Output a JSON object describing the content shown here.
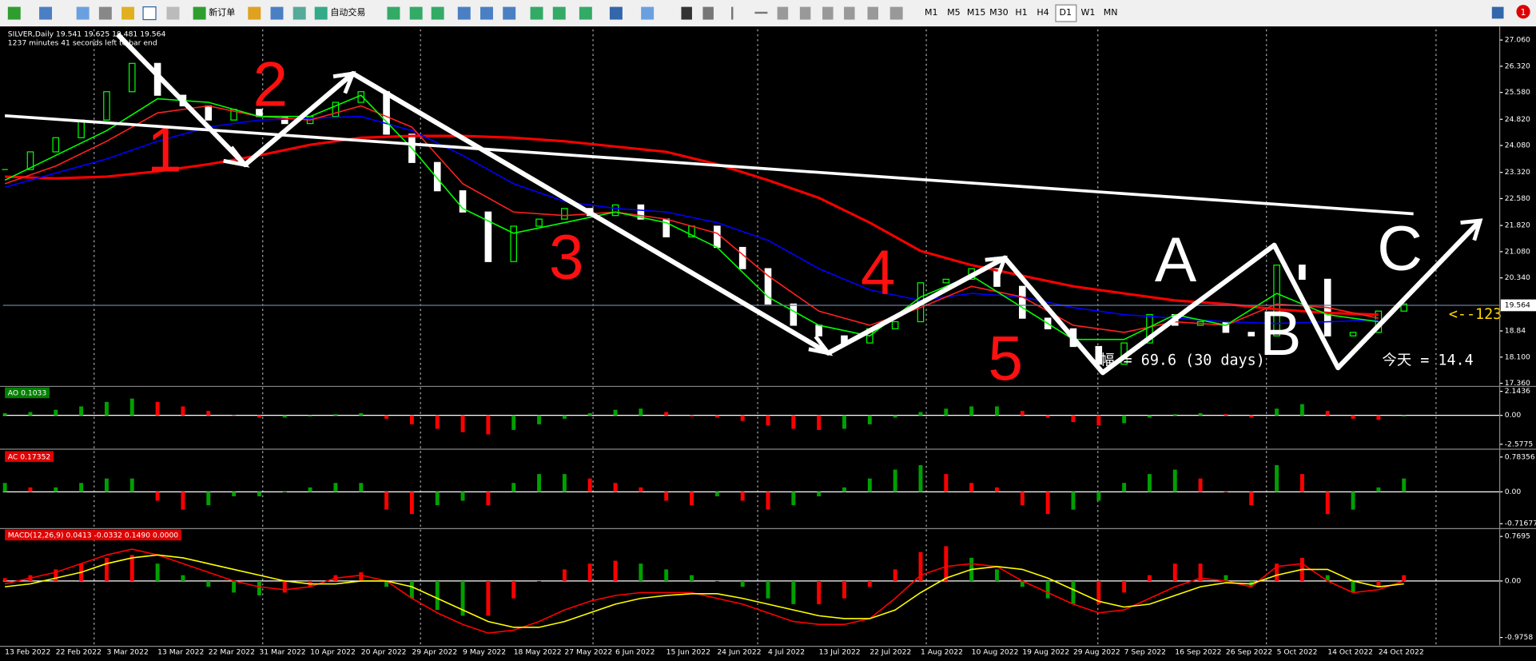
{
  "toolbar": {
    "new_order": "新订单",
    "auto_trading": "自动交易",
    "timeframes": [
      "M1",
      "M5",
      "M15",
      "M30",
      "H1",
      "H4",
      "D1",
      "W1",
      "MN"
    ],
    "active_timeframe": "D1",
    "notifications": 1
  },
  "chart_data": [
    {
      "type": "candlestick",
      "title": "SILVER,Daily  19.541 19.625 19.481 19.564",
      "subtitle": "1237 minutes 41 seconds left to bar end",
      "categories": [
        "13 Feb 2022",
        "22 Feb 2022",
        "3 Mar 2022",
        "13 Mar 2022",
        "22 Mar 2022",
        "31 Mar 2022",
        "10 Apr 2022",
        "20 Apr 2022",
        "29 Apr 2022",
        "9 May 2022",
        "18 May 2022",
        "27 May 2022",
        "6 Jun 2022",
        "15 Jun 2022",
        "24 Jun 2022",
        "4 Jul 2022",
        "13 Jul 2022",
        "22 Jul 2022",
        "1 Aug 2022",
        "10 Aug 2022",
        "19 Aug 2022",
        "29 Aug 2022",
        "7 Sep 2022",
        "16 Sep 2022",
        "26 Sep 2022",
        "5 Oct 2022",
        "14 Oct 2022",
        "24 Oct 2022"
      ],
      "closes": [
        23.4,
        23.9,
        24.3,
        24.8,
        25.6,
        26.4,
        25.5,
        25.2,
        24.8,
        25.1,
        24.9,
        24.7,
        24.9,
        25.3,
        25.6,
        24.4,
        23.6,
        22.8,
        22.2,
        20.8,
        21.8,
        22.0,
        22.3,
        22.1,
        22.4,
        22.0,
        21.5,
        21.8,
        21.2,
        20.6,
        19.6,
        19.0,
        18.7,
        18.5,
        18.9,
        19.1,
        20.2,
        20.3,
        20.6,
        20.1,
        19.2,
        18.9,
        18.4,
        17.9,
        18.5,
        19.3,
        19.0,
        19.1,
        18.8,
        18.7,
        20.7,
        20.3,
        18.7,
        18.8,
        19.4,
        19.6
      ],
      "up_color": "#00ff00",
      "down_color": "#ffffff",
      "series": [
        {
          "color": "#ff0000",
          "values": [
            23.2,
            23.15,
            23.2,
            23.35,
            23.55,
            23.8,
            24.1,
            24.3,
            24.35,
            24.35,
            24.3,
            24.2,
            24.05,
            23.9,
            23.55,
            23.1,
            22.6,
            21.9,
            21.1,
            20.7,
            20.4,
            20.1,
            19.9,
            19.7,
            19.6,
            19.45,
            19.35,
            19.3
          ]
        },
        {
          "color": "#0000ff",
          "values": [
            22.9,
            23.3,
            23.7,
            24.2,
            24.6,
            24.8,
            24.85,
            24.9,
            24.5,
            23.8,
            23.0,
            22.5,
            22.3,
            22.2,
            21.9,
            21.4,
            20.6,
            20.0,
            19.7,
            19.9,
            19.8,
            19.5,
            19.3,
            19.2,
            19.1,
            19.05,
            19.1,
            19.15
          ]
        },
        {
          "color": "#ff2020",
          "values": [
            23.0,
            23.5,
            24.2,
            25.0,
            25.2,
            24.9,
            24.8,
            25.2,
            24.6,
            23.0,
            22.2,
            22.1,
            22.2,
            22.0,
            21.6,
            20.4,
            19.4,
            19.0,
            19.5,
            20.1,
            19.8,
            19.0,
            18.8,
            19.1,
            19.0,
            19.6,
            19.5,
            19.2
          ]
        },
        {
          "color": "#00ff00",
          "values": [
            23.1,
            23.8,
            24.5,
            25.4,
            25.3,
            24.9,
            24.9,
            25.5,
            24.0,
            22.3,
            21.6,
            21.9,
            22.2,
            21.9,
            21.2,
            19.8,
            19.0,
            18.7,
            19.8,
            20.4,
            19.5,
            18.6,
            18.6,
            19.3,
            19.0,
            19.9,
            19.3,
            19.1
          ]
        }
      ],
      "ylim": [
        17.3,
        27.36
      ],
      "yticks": [
        {
          "value": 27.06,
          "label": "27.060"
        },
        {
          "value": 26.32,
          "label": "26.320"
        },
        {
          "value": 25.58,
          "label": "25.580"
        },
        {
          "value": 24.82,
          "label": "24.820"
        },
        {
          "value": 24.08,
          "label": "24.080"
        },
        {
          "value": 23.32,
          "label": "23.320"
        },
        {
          "value": 22.58,
          "label": "22.580"
        },
        {
          "value": 21.82,
          "label": "21.820"
        },
        {
          "value": 21.08,
          "label": "21.080"
        },
        {
          "value": 20.34,
          "label": "20.340"
        },
        18.84,
        {
          "value": 18.1,
          "label": "18.100"
        },
        {
          "value": 17.36,
          "label": "17.360"
        }
      ],
      "current_price": 19.564,
      "annotations": {
        "waves": [
          "1",
          "2",
          "3",
          "4",
          "5",
          "A",
          "B",
          "C"
        ],
        "amplitude": "幅 = 69.6  (30 days)",
        "today": "今天 = 14.4",
        "marker": "<--123"
      }
    },
    {
      "type": "bar",
      "title": "AO 0.1033",
      "title_bg": "#008000",
      "up_color": "#00a000",
      "down_color": "#ff0000",
      "values": [
        0.2,
        0.3,
        0.5,
        0.8,
        1.2,
        1.5,
        1.2,
        0.8,
        0.4,
        0.0,
        -0.2,
        -0.2,
        -0.1,
        0.1,
        0.2,
        -0.3,
        -0.8,
        -1.2,
        -1.5,
        -1.7,
        -1.3,
        -0.8,
        -0.3,
        0.2,
        0.5,
        0.6,
        0.3,
        -0.1,
        -0.2,
        -0.5,
        -0.9,
        -1.2,
        -1.3,
        -1.2,
        -0.8,
        -0.2,
        0.3,
        0.6,
        0.8,
        0.8,
        0.4,
        -0.2,
        -0.6,
        -0.9,
        -0.7,
        -0.2,
        0.1,
        0.2,
        0.1,
        -0.2,
        0.6,
        1.0,
        0.4,
        -0.3,
        -0.4,
        -0.1
      ],
      "ylim": [
        -2.93,
        2.41
      ],
      "yticks": [
        2.1436,
        {
          "value": 0,
          "label": "0.00"
        },
        -2.5775
      ]
    },
    {
      "type": "bar",
      "title": "AC 0.17352",
      "title_bg": "#e00000",
      "up_color": "#00a000",
      "down_color": "#ff0000",
      "values": [
        0.2,
        0.1,
        0.1,
        0.2,
        0.3,
        0.3,
        -0.2,
        -0.4,
        -0.3,
        -0.1,
        -0.1,
        0.0,
        0.1,
        0.2,
        0.2,
        -0.4,
        -0.5,
        -0.3,
        -0.2,
        -0.3,
        0.2,
        0.4,
        0.4,
        0.3,
        0.2,
        0.1,
        -0.2,
        -0.3,
        -0.1,
        -0.2,
        -0.4,
        -0.3,
        -0.1,
        0.1,
        0.3,
        0.5,
        0.6,
        0.4,
        0.2,
        0.1,
        -0.3,
        -0.5,
        -0.4,
        -0.2,
        0.2,
        0.4,
        0.5,
        0.3,
        0.0,
        -0.3,
        0.6,
        0.4,
        -0.5,
        -0.4,
        0.1,
        0.3
      ],
      "ylim": [
        -0.805,
        0.894
      ],
      "yticks": [
        0.78356,
        {
          "value": 0,
          "label": "0.00"
        },
        -0.71677
      ]
    },
    {
      "type": "macd",
      "title": "MACD(12,26,9) 0.0413 -0.0332 0.1490 0.0000",
      "title_bg": "#e00000",
      "up_color": "#ff0000",
      "down_color": "#00a000",
      "values": [
        0.05,
        0.1,
        0.2,
        0.3,
        0.4,
        0.45,
        0.3,
        0.1,
        -0.1,
        -0.2,
        -0.25,
        -0.2,
        -0.1,
        0.1,
        0.15,
        -0.1,
        -0.3,
        -0.5,
        -0.6,
        -0.6,
        -0.3,
        0.0,
        0.2,
        0.3,
        0.35,
        0.3,
        0.2,
        0.1,
        0.0,
        -0.1,
        -0.3,
        -0.4,
        -0.4,
        -0.3,
        -0.1,
        0.2,
        0.5,
        0.6,
        0.4,
        0.2,
        -0.1,
        -0.3,
        -0.4,
        -0.4,
        -0.2,
        0.1,
        0.3,
        0.3,
        0.1,
        -0.1,
        0.3,
        0.4,
        0.1,
        -0.2,
        -0.1,
        0.1
      ],
      "series": [
        {
          "color": "#ff0000",
          "values": [
            -0.05,
            0.05,
            0.15,
            0.3,
            0.45,
            0.55,
            0.45,
            0.3,
            0.15,
            0.0,
            -0.1,
            -0.15,
            -0.1,
            0.05,
            0.1,
            0.0,
            -0.3,
            -0.55,
            -0.75,
            -0.9,
            -0.85,
            -0.7,
            -0.5,
            -0.35,
            -0.25,
            -0.2,
            -0.2,
            -0.2,
            -0.3,
            -0.4,
            -0.55,
            -0.7,
            -0.75,
            -0.75,
            -0.65,
            -0.3,
            0.1,
            0.25,
            0.3,
            0.25,
            0.0,
            -0.2,
            -0.4,
            -0.55,
            -0.5,
            -0.3,
            -0.1,
            0.05,
            0.0,
            -0.1,
            0.25,
            0.3,
            0.0,
            -0.2,
            -0.15,
            0.0
          ]
        },
        {
          "color": "#ffff00",
          "values": [
            -0.1,
            -0.05,
            0.05,
            0.15,
            0.3,
            0.4,
            0.45,
            0.4,
            0.3,
            0.2,
            0.1,
            0.0,
            -0.05,
            -0.05,
            0.0,
            0.0,
            -0.1,
            -0.3,
            -0.5,
            -0.7,
            -0.8,
            -0.8,
            -0.7,
            -0.55,
            -0.4,
            -0.3,
            -0.25,
            -0.22,
            -0.22,
            -0.3,
            -0.4,
            -0.5,
            -0.6,
            -0.65,
            -0.65,
            -0.5,
            -0.2,
            0.05,
            0.2,
            0.25,
            0.2,
            0.05,
            -0.15,
            -0.35,
            -0.45,
            -0.4,
            -0.25,
            -0.1,
            -0.03,
            -0.05,
            0.1,
            0.2,
            0.2,
            0.0,
            -0.1,
            -0.05
          ]
        }
      ],
      "ylim": [
        -1.111,
        0.871
      ],
      "yticks": [
        0.7695,
        {
          "value": 0,
          "label": "0.00"
        },
        -0.9758
      ]
    }
  ]
}
